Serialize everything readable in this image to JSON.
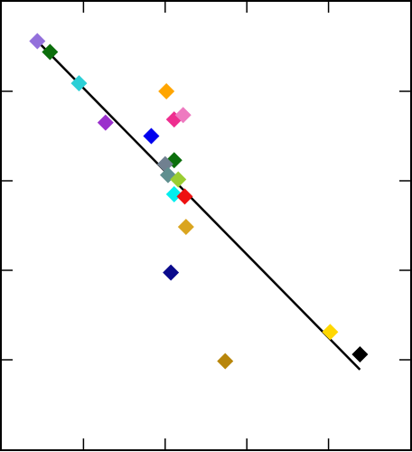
{
  "chart_data": {
    "type": "scatter",
    "title": "",
    "xlabel": "",
    "ylabel": "",
    "xlim": [
      0,
      10
    ],
    "ylim": [
      0,
      10
    ],
    "grid": false,
    "legend": "none",
    "x_ticks": [
      2,
      4,
      6,
      8
    ],
    "y_ticks": [
      2,
      4,
      6,
      8
    ],
    "tick_labels_visible": false,
    "points": [
      {
        "x": 0.87,
        "y": 9.12,
        "color": "#9370db"
      },
      {
        "x": 1.18,
        "y": 8.88,
        "color": "#0b6e0b"
      },
      {
        "x": 1.89,
        "y": 8.18,
        "color": "#2ccfd6"
      },
      {
        "x": 2.54,
        "y": 7.3,
        "color": "#9b30cc"
      },
      {
        "x": 3.66,
        "y": 7.0,
        "color": "#0000ee"
      },
      {
        "x": 4.03,
        "y": 8.0,
        "color": "#ffa500"
      },
      {
        "x": 4.22,
        "y": 7.37,
        "color": "#ee2d8f"
      },
      {
        "x": 4.44,
        "y": 7.47,
        "color": "#ee7ac0"
      },
      {
        "x": 4.22,
        "y": 6.46,
        "color": "#0b6e0b"
      },
      {
        "x": 4.0,
        "y": 6.37,
        "color": "#708090"
      },
      {
        "x": 4.07,
        "y": 6.13,
        "color": "#5f8f8f"
      },
      {
        "x": 4.32,
        "y": 6.03,
        "color": "#9acd32"
      },
      {
        "x": 4.22,
        "y": 5.7,
        "color": "#00eeee"
      },
      {
        "x": 4.48,
        "y": 5.65,
        "color": "#ee1010"
      },
      {
        "x": 4.51,
        "y": 4.97,
        "color": "#daa520"
      },
      {
        "x": 4.14,
        "y": 3.95,
        "color": "#0a0a8c"
      },
      {
        "x": 5.47,
        "y": 1.97,
        "color": "#b8860b"
      },
      {
        "x": 8.04,
        "y": 2.62,
        "color": "#ffd700"
      },
      {
        "x": 8.77,
        "y": 2.12,
        "color": "#000000"
      }
    ],
    "fit_line": {
      "x": [
        0.87,
        8.77
      ],
      "y": [
        9.12,
        1.78
      ],
      "color": "#000000"
    }
  }
}
